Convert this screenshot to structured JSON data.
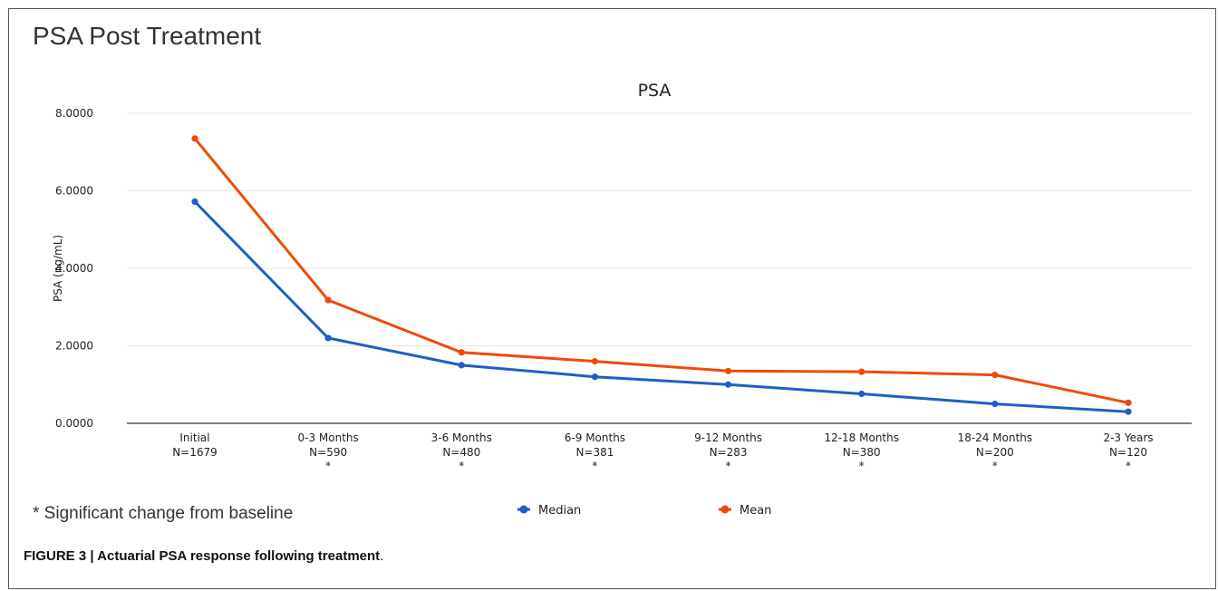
{
  "slide": {
    "title": "PSA Post Treatment",
    "footnote": "* Significant change from baseline",
    "caption_bold": "FIGURE 3 | Actuarial PSA response following treatment",
    "caption_end": "."
  },
  "colors": {
    "median": "#1f5fc4",
    "mean": "#f04a0a",
    "grid": "#e6e6e6",
    "axis": "#333333"
  },
  "chart_data": {
    "type": "line",
    "title": "PSA",
    "xlabel": "",
    "ylabel": "PSA (ng/mL)",
    "ylim": [
      0,
      8
    ],
    "yticks": [
      "0.0000",
      "2.0000",
      "4.0000",
      "6.0000",
      "8.0000"
    ],
    "grid": true,
    "legend_position": "bottom-center",
    "categories": [
      {
        "label": "Initial",
        "n": "N=1679",
        "significant": false
      },
      {
        "label": "0-3 Months",
        "n": "N=590",
        "significant": true
      },
      {
        "label": "3-6 Months",
        "n": "N=480",
        "significant": true
      },
      {
        "label": "6-9 Months",
        "n": "N=381",
        "significant": true
      },
      {
        "label": "9-12 Months",
        "n": "N=283",
        "significant": true
      },
      {
        "label": "12-18 Months",
        "n": "N=380",
        "significant": true
      },
      {
        "label": "18-24 Months",
        "n": "N=200",
        "significant": true
      },
      {
        "label": "2-3 Years",
        "n": "N=120",
        "significant": true
      }
    ],
    "significance_marker": "*",
    "series": [
      {
        "name": "Median",
        "key": "median",
        "values": [
          5.72,
          2.2,
          1.5,
          1.2,
          1.0,
          0.76,
          0.5,
          0.3
        ]
      },
      {
        "name": "Mean",
        "key": "mean",
        "values": [
          7.35,
          3.18,
          1.83,
          1.6,
          1.35,
          1.33,
          1.25,
          0.53
        ]
      }
    ]
  }
}
